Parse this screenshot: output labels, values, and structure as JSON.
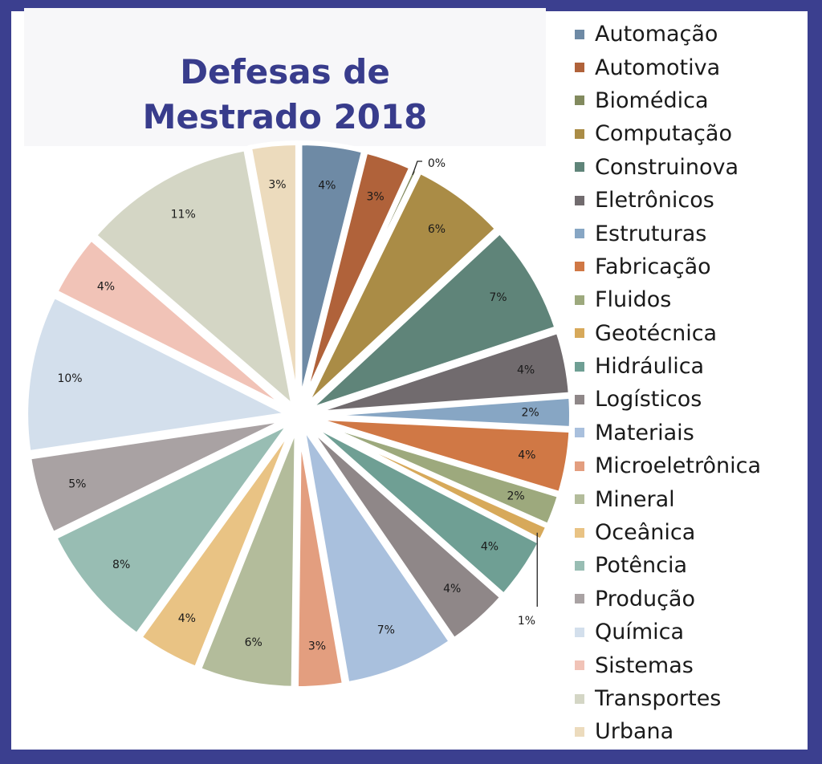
{
  "chart_data": {
    "type": "pie",
    "title": "Defesas de Mestrado 2018",
    "title_lines": [
      "Defesas de",
      "Mestrado 2018"
    ],
    "slices": [
      {
        "name": "Automação",
        "value": 4,
        "label": "4%",
        "color": "#6e8aa5"
      },
      {
        "name": "Automotiva",
        "value": 3,
        "label": "3%",
        "color": "#b0623a"
      },
      {
        "name": "Biomédica",
        "value": 0.4,
        "label": "0%",
        "color": "#828a5e"
      },
      {
        "name": "Computação",
        "value": 6,
        "label": "6%",
        "color": "#aa8c46"
      },
      {
        "name": "Construinova",
        "value": 7,
        "label": "7%",
        "color": "#5f8479"
      },
      {
        "name": "Eletrônicos",
        "value": 4,
        "label": "4%",
        "color": "#716b6e"
      },
      {
        "name": "Estruturas",
        "value": 2,
        "label": "2%",
        "color": "#87a6c4"
      },
      {
        "name": "Fabricação",
        "value": 4,
        "label": "4%",
        "color": "#d07845"
      },
      {
        "name": "Fluidos",
        "value": 2,
        "label": "2%",
        "color": "#9da97d"
      },
      {
        "name": "Geotécnica",
        "value": 1,
        "label": "1%",
        "color": "#d7a95a"
      },
      {
        "name": "Hidráulica",
        "value": 4,
        "label": "4%",
        "color": "#6f9f94"
      },
      {
        "name": "Logísticos",
        "value": 4,
        "label": "4%",
        "color": "#8f8788"
      },
      {
        "name": "Materiais",
        "value": 7,
        "label": "7%",
        "color": "#a9c0dd"
      },
      {
        "name": "Microeletrônica",
        "value": 3,
        "label": "3%",
        "color": "#e39e7f"
      },
      {
        "name": "Mineral",
        "value": 6,
        "label": "6%",
        "color": "#b3bc9b"
      },
      {
        "name": "Oceânica",
        "value": 4,
        "label": "4%",
        "color": "#e9c384"
      },
      {
        "name": "Potência",
        "value": 8,
        "label": "8%",
        "color": "#98bdb3"
      },
      {
        "name": "Produção",
        "value": 5,
        "label": "5%",
        "color": "#a9a2a3"
      },
      {
        "name": "Química",
        "value": 10,
        "label": "10%",
        "color": "#d3dfec"
      },
      {
        "name": "Sistemas",
        "value": 4,
        "label": "4%",
        "color": "#f1c3b7"
      },
      {
        "name": "Transportes",
        "value": 11,
        "label": "11%",
        "color": "#d4d6c5"
      },
      {
        "name": "Urbana",
        "value": 3,
        "label": "3%",
        "color": "#ecdbbd"
      }
    ],
    "legend_position": "right"
  }
}
